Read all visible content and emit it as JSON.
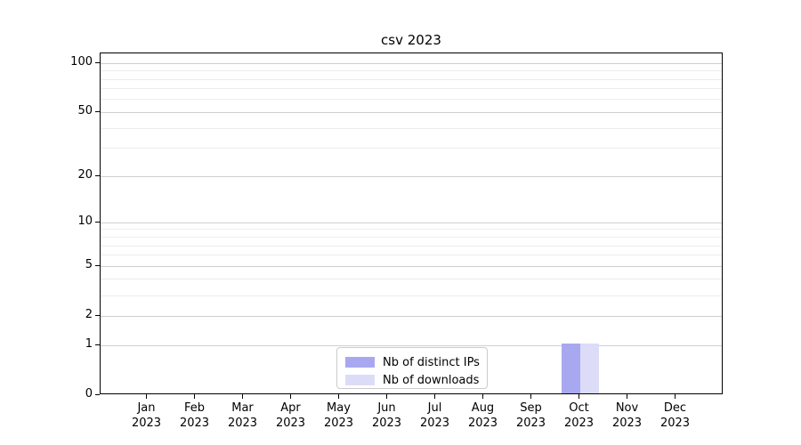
{
  "chart_data": {
    "type": "bar",
    "title": "csv 2023",
    "categories": [
      "Jan 2023",
      "Feb 2023",
      "Mar 2023",
      "Apr 2023",
      "May 2023",
      "Jun 2023",
      "Jul 2023",
      "Aug 2023",
      "Sep 2023",
      "Oct 2023",
      "Nov 2023",
      "Dec 2023"
    ],
    "series": [
      {
        "name": "Nb of distinct IPs",
        "color": "#a8a8f0",
        "values": [
          0,
          0,
          0,
          0,
          0,
          0,
          0,
          0,
          0,
          1,
          0,
          0
        ]
      },
      {
        "name": "Nb of downloads",
        "color": "#dcdcf8",
        "values": [
          0,
          0,
          0,
          0,
          0,
          0,
          0,
          0,
          0,
          1,
          0,
          0
        ]
      }
    ],
    "xlabel": "",
    "ylabel": "",
    "yscale": "log1p",
    "ylim": [
      0,
      115
    ],
    "yticks": [
      0,
      1,
      2,
      5,
      10,
      20,
      50,
      100
    ],
    "yticks_minor": [
      3,
      4,
      6,
      7,
      8,
      9,
      30,
      40,
      60,
      70,
      80,
      90
    ],
    "grid": "horizontal-only",
    "legend_position": "lower center",
    "plot_bg": "#ffffff",
    "axis_color": "#000000",
    "grid_major_color": "#cfcfcf",
    "grid_minor_color": "#ececec"
  }
}
